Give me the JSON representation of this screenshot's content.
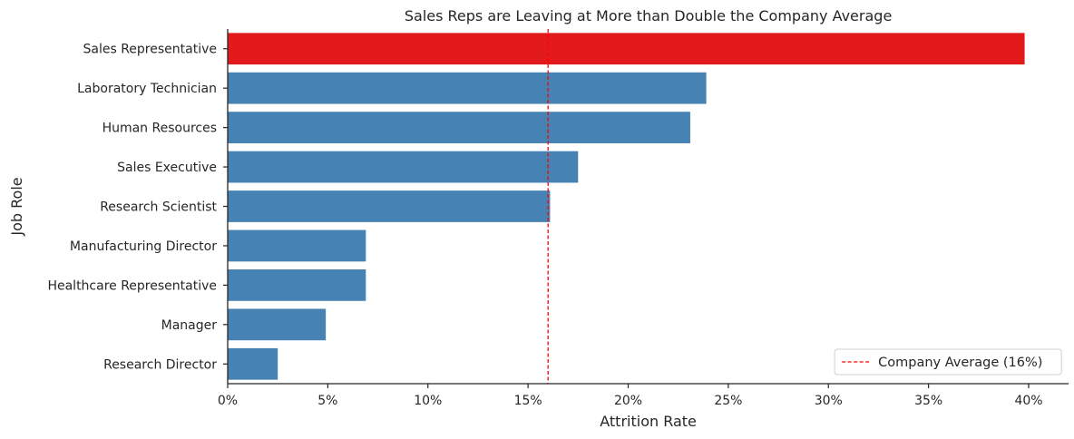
{
  "chart_data": {
    "type": "bar",
    "orientation": "horizontal",
    "title": "Sales Reps are Leaving at More than Double the Company Average",
    "xlabel": "Attrition Rate",
    "ylabel": "Job Role",
    "xlim": [
      0,
      0.42
    ],
    "x_ticks": [
      0,
      0.05,
      0.1,
      0.15,
      0.2,
      0.25,
      0.3,
      0.35,
      0.4
    ],
    "x_tick_labels": [
      "0%",
      "5%",
      "10%",
      "15%",
      "20%",
      "25%",
      "30%",
      "35%",
      "40%"
    ],
    "categories": [
      "Sales Representative",
      "Laboratory Technician",
      "Human Resources",
      "Sales Executive",
      "Research Scientist",
      "Manufacturing Director",
      "Healthcare Representative",
      "Manager",
      "Research Director"
    ],
    "values": [
      0.398,
      0.239,
      0.231,
      0.175,
      0.161,
      0.069,
      0.069,
      0.049,
      0.025
    ],
    "bar_colors": [
      "#e31a1c",
      "#4682b4",
      "#4682b4",
      "#4682b4",
      "#4682b4",
      "#4682b4",
      "#4682b4",
      "#4682b4",
      "#4682b4"
    ],
    "reference_line": {
      "value": 0.16,
      "color": "#ff0000",
      "style": "dashed",
      "label": "Company Average (16%)"
    },
    "legend_position": "lower-right",
    "grid": false
  }
}
